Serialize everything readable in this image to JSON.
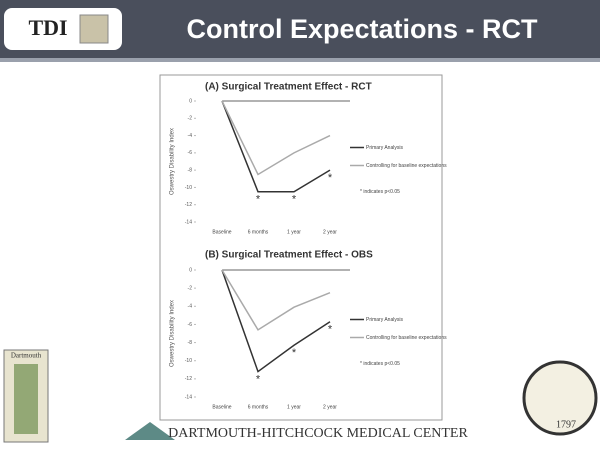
{
  "slide": {
    "logo": "TDI",
    "title": "Control Expectations - RCT",
    "seal_caption": "Dartmouth",
    "seal_year": "1797",
    "footer": "DARTMOUTH-HITCHCOCK MEDICAL CENTER"
  },
  "chart_data": [
    {
      "type": "line",
      "title": "(A) Surgical Treatment Effect - RCT",
      "y_label": "Oswestry Disability Index",
      "categories": [
        "Baseline",
        "6 months",
        "1 year",
        "2 year"
      ],
      "series": [
        {
          "name": "Primary Analysis",
          "color": "#333333",
          "values": [
            0,
            -10.5,
            -10.5,
            -8
          ],
          "significant": [
            false,
            true,
            true,
            true
          ]
        },
        {
          "name": "Controlling for baseline expectations",
          "color": "#aaaaaa",
          "values": [
            0,
            -8.5,
            -6,
            -4
          ],
          "significant": [
            false,
            false,
            false,
            false
          ]
        }
      ],
      "marker": "*",
      "note": "* indicates p<0.05",
      "ylim": [
        -14,
        0
      ],
      "yticks": [
        0,
        -2,
        -4,
        -6,
        -8,
        -10,
        -12,
        -14
      ]
    },
    {
      "type": "line",
      "title": "(B) Surgical Treatment Effect - OBS",
      "y_label": "Oswestry Disability Index",
      "categories": [
        "Baseline",
        "6 months",
        "1 year",
        "2 year"
      ],
      "series": [
        {
          "name": "Primary Analysis",
          "color": "#333333",
          "values": [
            0,
            -11.2,
            -8.3,
            -5.7
          ],
          "significant": [
            false,
            true,
            true,
            true
          ]
        },
        {
          "name": "Controlling for baseline expectations",
          "color": "#aaaaaa",
          "values": [
            0,
            -6.6,
            -4.1,
            -2.5
          ],
          "significant": [
            false,
            false,
            false,
            false
          ]
        }
      ],
      "marker": "*",
      "note": "* indicates p<0.05",
      "ylim": [
        -14,
        0
      ],
      "yticks": [
        0,
        -2,
        -4,
        -6,
        -8,
        -10,
        -12,
        -14
      ]
    }
  ]
}
